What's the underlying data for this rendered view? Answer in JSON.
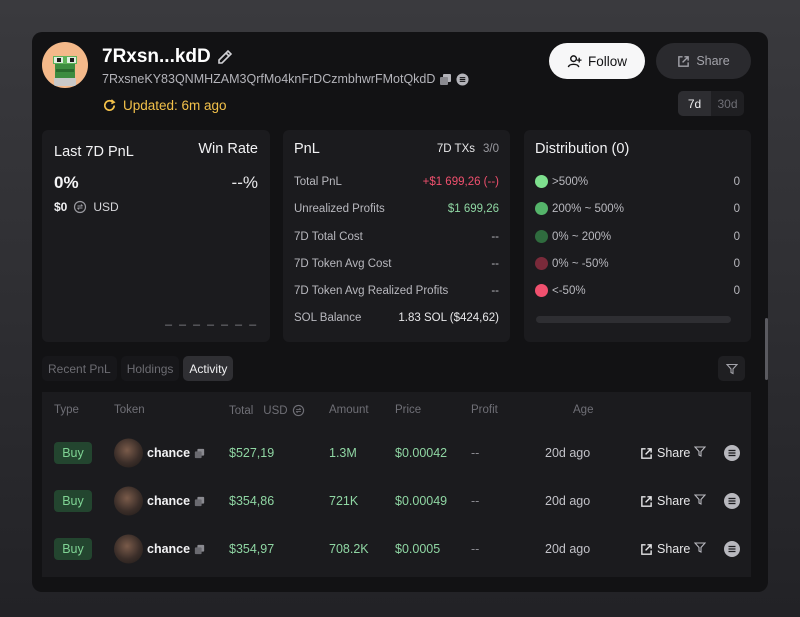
{
  "profile": {
    "name": "7Rxsn...kdD",
    "address": "7RxsneKY83QNMHZAM3QrfMo4knFrDCzmbhwrFMotQkdD",
    "updated": "Updated: 6m ago"
  },
  "actions": {
    "follow_label": "Follow",
    "share_label": "Share"
  },
  "period": {
    "options": [
      "7d",
      "30d"
    ],
    "selected": "7d"
  },
  "summary": {
    "pnl_label": "Last 7D PnL",
    "pnl_value": "0%",
    "win_rate_label": "Win Rate",
    "win_rate_value": "--%",
    "usd_value": "$0",
    "usd_label": "USD",
    "dashes": "_ _ _ _ _ _ _"
  },
  "pnl": {
    "title": "PnL",
    "txs_label": "7D TXs",
    "txs_value": "3/0",
    "rows": [
      {
        "label": "Total PnL",
        "value": "+$1 699,26 (--)"
      },
      {
        "label": "Unrealized Profits",
        "value": "$1 699,26"
      },
      {
        "label": "7D Total Cost",
        "value": "--"
      },
      {
        "label": "7D Token Avg Cost",
        "value": "--"
      },
      {
        "label": "7D Token Avg Realized Profits",
        "value": "--"
      },
      {
        "label": "SOL Balance",
        "value": "1.83 SOL ($424,62)"
      }
    ]
  },
  "distribution": {
    "title": "Distribution (0)",
    "rows": [
      {
        "label": ">500%",
        "count": "0",
        "color": "#7ee08e"
      },
      {
        "label": "200% ~ 500%",
        "count": "0",
        "color": "#55b46a"
      },
      {
        "label": "0% ~ 200%",
        "count": "0",
        "color": "#2f6b3e"
      },
      {
        "label": "0% ~ -50%",
        "count": "0",
        "color": "#7a2a3a"
      },
      {
        "label": "<-50%",
        "count": "0",
        "color": "#f0506e"
      }
    ]
  },
  "tabs": [
    "Recent PnL",
    "Holdings",
    "Activity"
  ],
  "active_tab": "Activity",
  "table": {
    "headers": {
      "type": "Type",
      "token": "Token",
      "total": "Total",
      "usd": "USD",
      "amount": "Amount",
      "price": "Price",
      "profit": "Profit",
      "age": "Age"
    },
    "rows": [
      {
        "type": "Buy",
        "token": "chance",
        "total": "$527,19",
        "amount": "1.3M",
        "price": "$0.00042",
        "profit": "--",
        "age": "20d ago",
        "share": "Share"
      },
      {
        "type": "Buy",
        "token": "chance",
        "total": "$354,86",
        "amount": "721K",
        "price": "$0.00049",
        "profit": "--",
        "age": "20d ago",
        "share": "Share"
      },
      {
        "type": "Buy",
        "token": "chance",
        "total": "$354,97",
        "amount": "708.2K",
        "price": "$0.0005",
        "profit": "--",
        "age": "20d ago",
        "share": "Share"
      }
    ]
  },
  "colors": {
    "accent_yellow": "#f3c14a",
    "positive": "#8fd6a3",
    "negative": "#f0506e",
    "buy_badge": "#23452f"
  }
}
